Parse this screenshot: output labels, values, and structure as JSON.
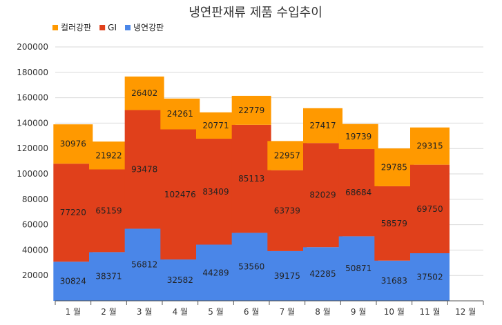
{
  "chart_data": {
    "type": "bar",
    "stacked": true,
    "title": "냉연판재류 제품 수입추이",
    "xlabel": "",
    "ylabel": "",
    "ylim": [
      0,
      200000
    ],
    "y_ticks": [
      20000,
      40000,
      60000,
      80000,
      100000,
      120000,
      140000,
      160000,
      180000,
      200000
    ],
    "grid": true,
    "legend_position": "top-left",
    "categories": [
      "1 월",
      "2 월",
      "3 월",
      "4 월",
      "5 월",
      "6 월",
      "7 월",
      "8 월",
      "9 월",
      "10 월",
      "11 월",
      "12 월"
    ],
    "series": [
      {
        "name": "냉연강판",
        "color": "#4a86e8",
        "values": [
          30824,
          38371,
          56812,
          32582,
          44289,
          53560,
          39175,
          42285,
          50871,
          31683,
          37502,
          null
        ]
      },
      {
        "name": "GI",
        "color": "#e0401b",
        "values": [
          77220,
          65159,
          93478,
          102476,
          83409,
          85113,
          63739,
          82029,
          68684,
          58579,
          69750,
          null
        ]
      },
      {
        "name": "컬러강판",
        "color": "#ff9900",
        "values": [
          30976,
          21922,
          26402,
          24261,
          20771,
          22779,
          22957,
          27417,
          19739,
          29785,
          29315,
          null
        ]
      }
    ]
  }
}
